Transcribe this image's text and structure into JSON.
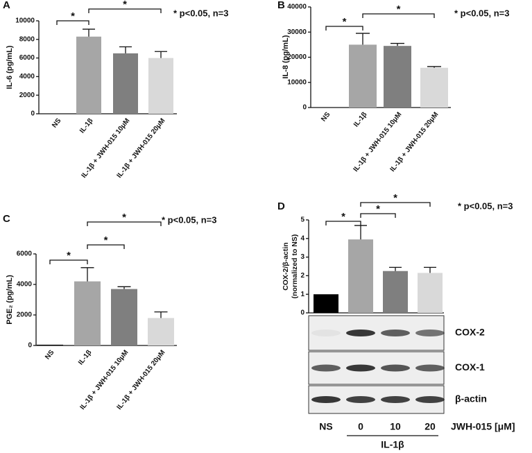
{
  "chart_data": [
    {
      "type": "bar",
      "panel": "A",
      "y_label": "IL-6 (pg/mL)",
      "categories": [
        "NS",
        "IL-1β",
        "IL-1β + JWH-015 10μM",
        "IL-1β + JWH-015 20μM"
      ],
      "values": [
        0,
        8300,
        6500,
        6000
      ],
      "errors": [
        0,
        800,
        700,
        700
      ],
      "colors": [
        "#000000",
        "#a6a6a6",
        "#7f7f7f",
        "#d9d9d9"
      ],
      "ylim": [
        0,
        10000
      ],
      "yticks": [
        0,
        2000,
        4000,
        6000,
        8000,
        10000
      ],
      "significance": [
        {
          "label": "*",
          "between": [
            0,
            1
          ]
        },
        {
          "label": "*",
          "between": [
            1,
            3
          ]
        }
      ],
      "note": "* p<0.05, n=3"
    },
    {
      "type": "bar",
      "panel": "B",
      "y_label": "IL-8 (pg/mL)",
      "categories": [
        "NS",
        "IL-1β",
        "IL-1β + JWH-015 10μM",
        "IL-1β + JWH-015 20μM"
      ],
      "values": [
        0,
        25000,
        24500,
        15800
      ],
      "errors": [
        0,
        4500,
        1000,
        500
      ],
      "colors": [
        "#000000",
        "#a6a6a6",
        "#7f7f7f",
        "#d9d9d9"
      ],
      "ylim": [
        0,
        40000
      ],
      "yticks": [
        0,
        10000,
        20000,
        30000,
        40000
      ],
      "significance": [
        {
          "label": "*",
          "between": [
            0,
            1
          ]
        },
        {
          "label": "*",
          "between": [
            1,
            3
          ]
        }
      ],
      "note": "* p<0.05, n=3"
    },
    {
      "type": "bar",
      "panel": "C",
      "y_label": "PGE₂ (pg/mL)",
      "categories": [
        "NS",
        "IL-1β",
        "IL-1β + JWH-015 10μM",
        "IL-1β + JWH-015 20μM"
      ],
      "values": [
        50,
        4200,
        3700,
        1800
      ],
      "errors": [
        0,
        900,
        150,
        400
      ],
      "colors": [
        "#000000",
        "#a6a6a6",
        "#7f7f7f",
        "#d9d9d9"
      ],
      "ylim": [
        0,
        6000
      ],
      "yticks": [
        0,
        2000,
        4000,
        6000
      ],
      "significance": [
        {
          "label": "*",
          "between": [
            0,
            1
          ]
        },
        {
          "label": "*",
          "between": [
            1,
            2
          ]
        },
        {
          "label": "*",
          "between": [
            1,
            3
          ]
        }
      ],
      "note": "* p<0.05, n=3"
    },
    {
      "type": "bar",
      "panel": "D",
      "y_label": [
        "COX-2/β-actin",
        "(normalized to NS)"
      ],
      "categories": [
        "NS",
        "0",
        "10",
        "20"
      ],
      "values": [
        1,
        3.95,
        2.25,
        2.15
      ],
      "errors": [
        0,
        0.75,
        0.2,
        0.3
      ],
      "colors": [
        "#000000",
        "#a6a6a6",
        "#7f7f7f",
        "#d9d9d9"
      ],
      "ylim": [
        0,
        5
      ],
      "yticks": [
        0,
        1,
        2,
        3,
        4,
        5
      ],
      "significance": [
        {
          "label": "*",
          "between": [
            0,
            1
          ]
        },
        {
          "label": "*",
          "between": [
            1,
            2
          ]
        },
        {
          "label": "*",
          "between": [
            1,
            3
          ]
        }
      ],
      "note": "* p<0.05, n=3",
      "blot_bands": [
        "COX-2",
        "COX-1",
        "β-actin"
      ],
      "x_label": "JWH-015 [μM]",
      "group_label": "IL-1β"
    }
  ]
}
